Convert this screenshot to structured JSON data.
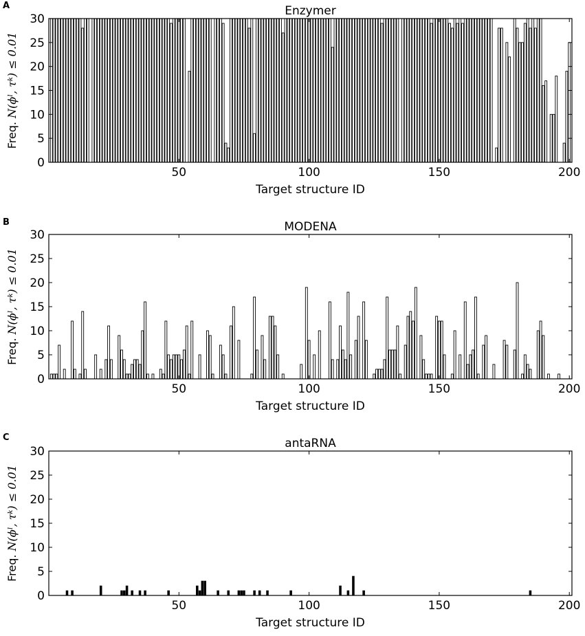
{
  "ylabel_prefix": "Freq.",
  "ylabel_expr": "N(ϕˡ, τᵏ) ≤ 0.01",
  "chart_data": [
    {
      "panel": "A",
      "type": "bar",
      "title": "Enzymer",
      "xlabel": "Target structure ID",
      "ylabel": "Freq. N(ϕˡ, τᵏ) ≤ 0.01",
      "xlim": [
        0,
        201
      ],
      "ylim": [
        0,
        30
      ],
      "xticks": [
        50,
        100,
        150,
        200
      ],
      "yticks": [
        0,
        5,
        10,
        15,
        20,
        25,
        30
      ],
      "x": "1..200",
      "values": [
        30,
        30,
        30,
        30,
        30,
        30,
        30,
        30,
        30,
        30,
        30,
        30,
        28,
        30,
        30,
        0,
        30,
        30,
        30,
        30,
        30,
        30,
        30,
        30,
        30,
        30,
        30,
        30,
        30,
        30,
        30,
        30,
        30,
        30,
        30,
        30,
        30,
        30,
        30,
        30,
        30,
        30,
        30,
        30,
        30,
        30,
        29,
        30,
        30,
        30,
        30,
        30,
        0,
        19,
        30,
        30,
        30,
        30,
        30,
        30,
        30,
        30,
        0,
        30,
        30,
        30,
        29,
        4,
        3,
        30,
        30,
        30,
        30,
        30,
        30,
        30,
        28,
        30,
        6,
        30,
        30,
        30,
        30,
        30,
        30,
        30,
        30,
        30,
        30,
        27,
        30,
        30,
        30,
        30,
        30,
        30,
        30,
        30,
        30,
        30,
        30,
        30,
        30,
        30,
        30,
        30,
        30,
        30,
        24,
        30,
        30,
        30,
        30,
        30,
        30,
        30,
        30,
        30,
        30,
        30,
        30,
        30,
        30,
        30,
        30,
        30,
        30,
        29,
        30,
        30,
        30,
        30,
        30,
        30,
        0,
        30,
        30,
        30,
        30,
        30,
        30,
        30,
        30,
        30,
        30,
        30,
        29,
        30,
        30,
        30,
        30,
        30,
        30,
        29,
        28,
        30,
        29,
        30,
        29,
        30,
        30,
        30,
        30,
        30,
        30,
        30,
        30,
        30,
        30,
        30,
        0,
        3,
        28,
        28,
        0,
        25,
        22,
        0,
        30,
        28,
        25,
        25,
        29,
        30,
        28,
        30,
        28,
        30,
        30,
        16,
        17,
        0,
        10,
        10,
        18,
        0,
        0,
        4,
        19,
        25,
        15
      ]
    },
    {
      "panel": "B",
      "type": "bar",
      "title": "MODENA",
      "xlabel": "Target structure ID",
      "ylabel": "Freq. N(ϕˡ, τᵏ) ≤ 0.01",
      "xlim": [
        0,
        201
      ],
      "ylim": [
        0,
        30
      ],
      "xticks": [
        50,
        100,
        150,
        200
      ],
      "yticks": [
        0,
        5,
        10,
        15,
        20,
        25,
        30
      ],
      "x": "1..200",
      "values": [
        1,
        1,
        1,
        7,
        0,
        2,
        0,
        0,
        12,
        2,
        0,
        1,
        14,
        2,
        0,
        0,
        0,
        5,
        0,
        2,
        0,
        4,
        11,
        4,
        0,
        0,
        9,
        6,
        4,
        1,
        1,
        3,
        4,
        4,
        3,
        10,
        16,
        1,
        0,
        1,
        0,
        0,
        2,
        1,
        12,
        5,
        4,
        5,
        5,
        5,
        4,
        6,
        11,
        1,
        12,
        0,
        0,
        5,
        0,
        0,
        10,
        9,
        1,
        0,
        0,
        7,
        5,
        1,
        0,
        11,
        15,
        0,
        8,
        0,
        0,
        0,
        0,
        1,
        17,
        6,
        0,
        9,
        4,
        0,
        13,
        13,
        11,
        5,
        0,
        1,
        0,
        0,
        0,
        0,
        0,
        2,
        0,
        0,
        0,
        19,
        0,
        1,
        0,
        0,
        0,
        0,
        0,
        0,
        0,
        0,
        0,
        0,
        0,
        0,
        0,
        0,
        0,
        0,
        0,
        0,
        0,
        0,
        0,
        0,
        0,
        0,
        0,
        0,
        0,
        0,
        0,
        0,
        0,
        0,
        0,
        0,
        0,
        0,
        0,
        0,
        0,
        0,
        0,
        0,
        0,
        0,
        0,
        0,
        0,
        0,
        0,
        0,
        0,
        0,
        0,
        0,
        0,
        0,
        0,
        0,
        0,
        0,
        0,
        0,
        0,
        0,
        0,
        0,
        0,
        0,
        0,
        0,
        0,
        0,
        0,
        0,
        0,
        0,
        0,
        0,
        0,
        0,
        0,
        0,
        0,
        0,
        0,
        0,
        0,
        0,
        0,
        0,
        0,
        0,
        0,
        0,
        0,
        0,
        0,
        0
      ],
      "values_overrides": {
        "95": 0,
        "96": 0,
        "97": 3,
        "98": 0,
        "99": 19,
        "100": 8,
        "101": 0,
        "102": 5,
        "103": 0,
        "104": 10,
        "105": 0,
        "106": 0,
        "107": 0,
        "108": 16,
        "109": 4,
        "110": 0,
        "111": 4,
        "112": 11,
        "113": 6,
        "114": 4,
        "115": 18,
        "116": 5,
        "117": 0,
        "118": 8,
        "119": 13,
        "120": 0,
        "121": 16,
        "122": 8,
        "123": 0,
        "124": 0,
        "125": 1,
        "126": 2,
        "127": 2,
        "128": 2,
        "129": 4,
        "130": 17,
        "131": 6,
        "132": 6,
        "133": 6,
        "134": 11,
        "135": 1,
        "136": 0,
        "137": 7,
        "138": 13,
        "139": 14,
        "140": 12,
        "141": 19,
        "142": 0,
        "143": 9,
        "144": 4,
        "145": 1,
        "146": 1,
        "147": 1,
        "148": 0,
        "149": 13,
        "150": 12,
        "151": 12,
        "152": 5,
        "153": 0,
        "154": 0,
        "155": 1,
        "156": 10,
        "157": 0,
        "158": 5,
        "159": 0,
        "160": 16,
        "161": 3,
        "162": 5,
        "163": 6,
        "164": 17,
        "165": 1,
        "166": 0,
        "167": 7,
        "168": 9,
        "169": 0,
        "170": 0,
        "171": 3,
        "172": 0,
        "173": 0,
        "174": 0,
        "175": 8,
        "176": 7,
        "177": 0,
        "178": 0,
        "179": 6,
        "180": 20,
        "181": 0,
        "182": 1,
        "183": 5,
        "184": 3,
        "185": 2,
        "186": 0,
        "187": 0,
        "188": 10,
        "189": 12,
        "190": 9,
        "191": 0,
        "192": 1,
        "193": 0,
        "194": 0,
        "195": 0,
        "196": 1,
        "197": 0,
        "198": 0,
        "199": 0,
        "200": 0,
        "189_": 0
      }
    },
    {
      "panel": "C",
      "type": "bar",
      "title": "antaRNA",
      "xlabel": "Target structure ID",
      "ylabel": "Freq. N(ϕˡ, τᵏ) ≤ 0.01",
      "xlim": [
        0,
        201
      ],
      "ylim": [
        0,
        30
      ],
      "xticks": [
        50,
        100,
        150,
        200
      ],
      "yticks": [
        0,
        5,
        10,
        15,
        20,
        25,
        30
      ],
      "points": [
        [
          7,
          1
        ],
        [
          9,
          1
        ],
        [
          20,
          2
        ],
        [
          28,
          1
        ],
        [
          29,
          1
        ],
        [
          30,
          2
        ],
        [
          32,
          1
        ],
        [
          35,
          1
        ],
        [
          37,
          1
        ],
        [
          46,
          1
        ],
        [
          57,
          2
        ],
        [
          58,
          1
        ],
        [
          59,
          3
        ],
        [
          60,
          3
        ],
        [
          65,
          1
        ],
        [
          69,
          1
        ],
        [
          73,
          1
        ],
        [
          74,
          1
        ],
        [
          75,
          1
        ],
        [
          79,
          1
        ],
        [
          81,
          1
        ],
        [
          84,
          1
        ],
        [
          93,
          1
        ],
        [
          112,
          2
        ],
        [
          115,
          1
        ],
        [
          117,
          4
        ],
        [
          121,
          1
        ],
        [
          185,
          1
        ]
      ]
    }
  ]
}
